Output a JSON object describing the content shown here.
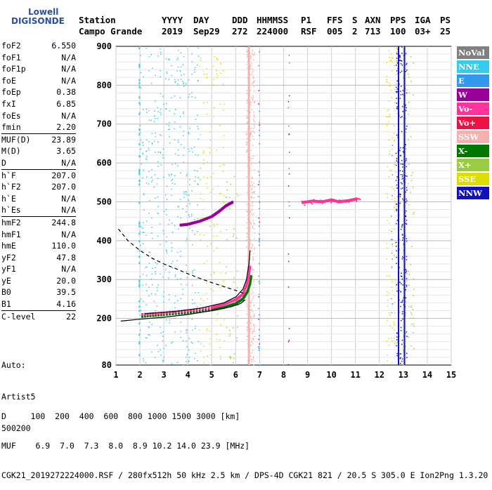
{
  "header": {
    "row1": [
      {
        "text": "Station",
        "x": 112
      },
      {
        "text": "YYYY",
        "x": 230
      },
      {
        "text": "DAY",
        "x": 275
      },
      {
        "text": "DDD",
        "x": 330
      },
      {
        "text": "HHMMSS",
        "x": 365
      },
      {
        "text": "P1",
        "x": 428
      },
      {
        "text": "FFS",
        "x": 465
      },
      {
        "text": "S",
        "x": 501
      },
      {
        "text": "AXN",
        "x": 519
      },
      {
        "text": "PPS",
        "x": 555
      },
      {
        "text": "IGA",
        "x": 590
      },
      {
        "text": "PS",
        "x": 626
      }
    ],
    "row2": [
      {
        "text": "Campo Grande",
        "x": 112
      },
      {
        "text": "2019",
        "x": 230
      },
      {
        "text": "Sep29",
        "x": 275
      },
      {
        "text": "272",
        "x": 330
      },
      {
        "text": "224000",
        "x": 365
      },
      {
        "text": "RSF",
        "x": 428
      },
      {
        "text": "005",
        "x": 465
      },
      {
        "text": "2",
        "x": 501
      },
      {
        "text": "713",
        "x": 519
      },
      {
        "text": "100",
        "x": 555
      },
      {
        "text": "03+",
        "x": 590
      },
      {
        "text": "25",
        "x": 626
      }
    ]
  },
  "logo": {
    "line1": "Lowell",
    "line2": "DIGISONDE"
  },
  "params": [
    {
      "label": "foF2",
      "value": "6.550",
      "sep": false
    },
    {
      "label": "foF1",
      "value": "N/A",
      "sep": false
    },
    {
      "label": "foF1p",
      "value": "N/A",
      "sep": false
    },
    {
      "label": "foE",
      "value": "N/A",
      "sep": false
    },
    {
      "label": "foEp",
      "value": "0.38",
      "sep": false
    },
    {
      "label": "fxI",
      "value": "6.85",
      "sep": false
    },
    {
      "label": "foEs",
      "value": "N/A",
      "sep": false
    },
    {
      "label": "fmin",
      "value": "2.20",
      "sep": false
    },
    {
      "label": "MUF(D)",
      "value": "23.89",
      "sep": true
    },
    {
      "label": "M(D)",
      "value": "3.65",
      "sep": false
    },
    {
      "label": "D",
      "value": "N/A",
      "sep": false
    },
    {
      "label": "h`F",
      "value": "207.0",
      "sep": true
    },
    {
      "label": "h`F2",
      "value": "207.0",
      "sep": false
    },
    {
      "label": "h`E",
      "value": "N/A",
      "sep": false
    },
    {
      "label": "h`Es",
      "value": "N/A",
      "sep": false
    },
    {
      "label": "hmF2",
      "value": "244.8",
      "sep": true
    },
    {
      "label": "hmF1",
      "value": "N/A",
      "sep": false
    },
    {
      "label": "hmE",
      "value": "110.0",
      "sep": false
    },
    {
      "label": "yF2",
      "value": "47.8",
      "sep": false
    },
    {
      "label": "yF1",
      "value": "N/A",
      "sep": false
    },
    {
      "label": "yE",
      "value": "20.0",
      "sep": false
    },
    {
      "label": "B0",
      "value": "39.5",
      "sep": false
    },
    {
      "label": "B1",
      "value": "4.16",
      "sep": false
    },
    {
      "label": "C-level",
      "value": "22",
      "sep": true
    }
  ],
  "auto": {
    "line1": "Auto:",
    "line2": "Artist5",
    "line3": "500200"
  },
  "legend": [
    {
      "label": "NoVal",
      "color": "#808080"
    },
    {
      "label": "NNE",
      "color": "#33ccee"
    },
    {
      "label": "E",
      "color": "#3399ee"
    },
    {
      "label": "W",
      "color": "#990099"
    },
    {
      "label": "Vo-",
      "color": "#ff3399"
    },
    {
      "label": "Vo+",
      "color": "#ee1144"
    },
    {
      "label": "SSW",
      "color": "#f5b0b0"
    },
    {
      "label": "X-",
      "color": "#007700"
    },
    {
      "label": "X+",
      "color": "#99cc44"
    },
    {
      "label": "SSE",
      "color": "#dddd00"
    },
    {
      "label": "NNW",
      "color": "#1111bb"
    }
  ],
  "footer": {
    "line1": "D     100  200  400  600  800 1000 1500 3000 [km]",
    "line2": "MUF    6.9  7.0  7.3  8.0  8.9 10.2 14.0 23.9 [MHz]",
    "line3": "CGK21_2019272224000.RSF / 280fx512h 50 kHz 2.5 km / DPS-4D CGK21 821 / 20.5 S 305.0 E Ion2Png 1.3.20"
  },
  "chart_data": {
    "type": "scatter",
    "title": "",
    "xlabel": "",
    "ylabel": "",
    "xlim": [
      1,
      15
    ],
    "ylim": [
      80,
      900
    ],
    "xticks": [
      1,
      2,
      3,
      4,
      5,
      6,
      7,
      8,
      9,
      10,
      11,
      12,
      13,
      14,
      15
    ],
    "yticks": [
      80,
      200,
      300,
      400,
      500,
      600,
      700,
      800,
      900
    ],
    "grid": true,
    "legend_position": "right",
    "series": [
      {
        "name": "X-",
        "color": "#007700",
        "type": "trace",
        "points": [
          [
            2.1,
            205
          ],
          [
            3,
            210
          ],
          [
            4,
            215
          ],
          [
            5,
            222
          ],
          [
            5.5,
            228
          ],
          [
            6,
            238
          ],
          [
            6.3,
            250
          ],
          [
            6.5,
            270
          ],
          [
            6.6,
            290
          ],
          [
            6.65,
            310
          ]
        ]
      },
      {
        "name": "Vo-",
        "color": "#ff3399",
        "type": "trace",
        "points": [
          [
            2.1,
            210
          ],
          [
            3,
            214
          ],
          [
            4,
            220
          ],
          [
            5,
            228
          ],
          [
            5.5,
            236
          ],
          [
            6,
            248
          ],
          [
            6.3,
            262
          ],
          [
            6.45,
            285
          ],
          [
            6.55,
            310
          ],
          [
            6.6,
            335
          ]
        ]
      },
      {
        "name": "W",
        "color": "#990099",
        "type": "trace",
        "points": [
          [
            3.7,
            440
          ],
          [
            4,
            442
          ],
          [
            4.5,
            450
          ],
          [
            5,
            462
          ],
          [
            5.3,
            475
          ],
          [
            5.6,
            490
          ],
          [
            5.9,
            500
          ]
        ]
      },
      {
        "name": "Vo-",
        "color": "#ff3399",
        "type": "cluster",
        "points": [
          [
            8.8,
            498
          ],
          [
            9.2,
            502
          ],
          [
            9.6,
            500
          ],
          [
            10,
            505
          ],
          [
            10.3,
            500
          ],
          [
            10.7,
            503
          ],
          [
            11.1,
            508
          ]
        ]
      }
    ],
    "lines": [
      {
        "name": "profile-solid-a",
        "style": "solid",
        "points": [
          [
            1.2,
            193
          ],
          [
            2,
            198
          ],
          [
            3,
            203
          ],
          [
            4,
            210
          ],
          [
            5,
            220
          ],
          [
            5.8,
            230
          ],
          [
            6.2,
            238
          ],
          [
            6.4,
            248
          ]
        ]
      },
      {
        "name": "profile-solid-b",
        "style": "solid",
        "points": [
          [
            2.2,
            212
          ],
          [
            3.5,
            218
          ],
          [
            4.5,
            226
          ],
          [
            5.5,
            240
          ],
          [
            6,
            255
          ],
          [
            6.3,
            275
          ],
          [
            6.45,
            300
          ],
          [
            6.55,
            340
          ],
          [
            6.6,
            375
          ]
        ]
      },
      {
        "name": "profile-dashed",
        "style": "dashed",
        "points": [
          [
            1.1,
            430
          ],
          [
            1.5,
            400
          ],
          [
            2,
            375
          ],
          [
            2.5,
            355
          ],
          [
            3,
            340
          ],
          [
            3.5,
            328
          ],
          [
            4,
            315
          ],
          [
            4.5,
            303
          ],
          [
            5,
            292
          ],
          [
            5.5,
            282
          ],
          [
            6,
            272
          ],
          [
            6.4,
            263
          ]
        ]
      }
    ]
  }
}
